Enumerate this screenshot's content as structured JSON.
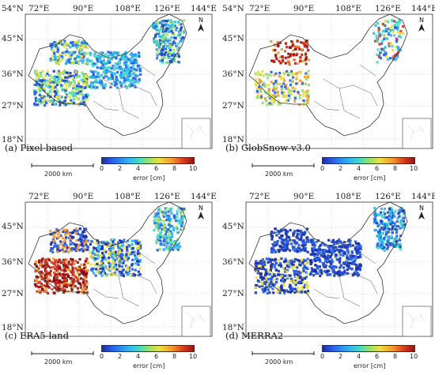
{
  "colorbar": {
    "unit_label": "error [cm]",
    "ticks": [
      "0",
      "2",
      "4",
      "6",
      "8",
      "10"
    ],
    "gradient_colors": [
      "#1b2ca8",
      "#2a63e8",
      "#2fb0f0",
      "#41d8c8",
      "#8fe070",
      "#e8e040",
      "#f39a2c",
      "#d84022",
      "#9a1010"
    ]
  },
  "scale_bar_label": "2000 km",
  "north_label": "N",
  "lon_ticks": [
    "72°E",
    "90°E",
    "108°E",
    "126°E",
    "144°E"
  ],
  "lat_ticks": [
    "54°N",
    "45°N",
    "36°N",
    "27°N",
    "18°N"
  ],
  "panels": [
    {
      "title": "(a) Pixel-based",
      "scheme": "pixel"
    },
    {
      "title": "(b) GlobSnow-v3.0",
      "scheme": "globsnow"
    },
    {
      "title": "(c) ERA5-land",
      "scheme": "era5"
    },
    {
      "title": "(d) MERRA2",
      "scheme": "merra2"
    }
  ]
}
